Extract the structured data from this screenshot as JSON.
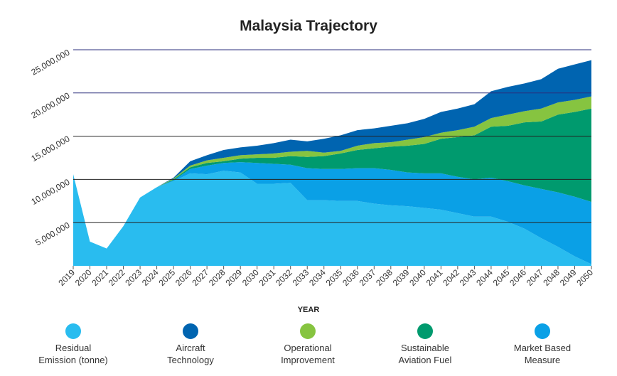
{
  "chart_data": {
    "type": "stacked_area",
    "title": "Malaysia Trajectory",
    "x_label": "YEAR",
    "x": [
      2019,
      2020,
      2021,
      2022,
      2023,
      2024,
      2025,
      2026,
      2027,
      2028,
      2029,
      2030,
      2031,
      2032,
      2033,
      2034,
      2035,
      2036,
      2037,
      2038,
      2039,
      2040,
      2041,
      2042,
      2043,
      2044,
      2045,
      2046,
      2047,
      2048,
      2049,
      2050
    ],
    "xlim": [
      2019,
      2050
    ],
    "ylim": [
      0,
      25000000
    ],
    "yticks": [
      {
        "value": 5000000,
        "label": "5,000,000"
      },
      {
        "value": 10000000,
        "label": "10,000,000"
      },
      {
        "value": 15000000,
        "label": "15,000,000"
      },
      {
        "value": 20000000,
        "label": "20,000,000"
      },
      {
        "value": 25000000,
        "label": "25,000,000"
      }
    ],
    "grid": true,
    "series": [
      {
        "name": "Residual Emission (tonne)",
        "color": "#29bcef",
        "values": [
          10600000,
          2800000,
          2000000,
          4600000,
          7900000,
          9100000,
          9800000,
          10700000,
          10600000,
          11000000,
          10800000,
          9500000,
          9500000,
          9600000,
          7600000,
          7600000,
          7500000,
          7500000,
          7200000,
          7000000,
          6900000,
          6700000,
          6500000,
          6100000,
          5700000,
          5700000,
          5100000,
          4300000,
          3200000,
          2200000,
          1100000,
          200000
        ]
      },
      {
        "name": "Aircraft Technology",
        "color": "#0064b0",
        "values": [
          0,
          0,
          0,
          0,
          0,
          0,
          100000,
          500000,
          600000,
          900000,
          900000,
          1000000,
          1200000,
          1400000,
          1100000,
          1600000,
          1800000,
          1800000,
          1700000,
          1900000,
          1900000,
          2100000,
          2400000,
          2500000,
          2600000,
          3100000,
          3200000,
          3200000,
          3400000,
          3900000,
          4100000,
          4200000
        ]
      },
      {
        "name": "Operational Improvement",
        "color": "#86c440",
        "values": [
          0,
          0,
          0,
          0,
          0,
          0,
          100000,
          200000,
          300000,
          400000,
          400000,
          400000,
          500000,
          500000,
          700000,
          400000,
          300000,
          500000,
          600000,
          500000,
          700000,
          800000,
          700000,
          800000,
          1000000,
          1000000,
          1300000,
          1300000,
          1500000,
          1400000,
          1400000,
          1400000
        ]
      },
      {
        "name": "Sustainable Aviation Fuel",
        "color": "#009a6e",
        "values": [
          0,
          0,
          0,
          0,
          0,
          0,
          100000,
          200000,
          300000,
          200000,
          400000,
          600000,
          700000,
          1000000,
          1300000,
          1500000,
          1800000,
          2100000,
          2300000,
          2700000,
          3100000,
          3400000,
          4000000,
          4600000,
          5100000,
          5900000,
          6400000,
          7300000,
          7800000,
          9000000,
          9800000,
          10800000
        ]
      },
      {
        "name": "Market Based Measure",
        "color": "#0aa0e6",
        "values": [
          0,
          0,
          0,
          0,
          0,
          0,
          100000,
          500000,
          1000000,
          900000,
          1200000,
          2400000,
          2300000,
          2100000,
          3700000,
          3600000,
          3700000,
          3800000,
          4100000,
          4100000,
          3900000,
          4000000,
          4200000,
          4200000,
          4300000,
          4500000,
          4700000,
          5000000,
          5700000,
          6300000,
          6900000,
          7200000
        ]
      }
    ]
  }
}
